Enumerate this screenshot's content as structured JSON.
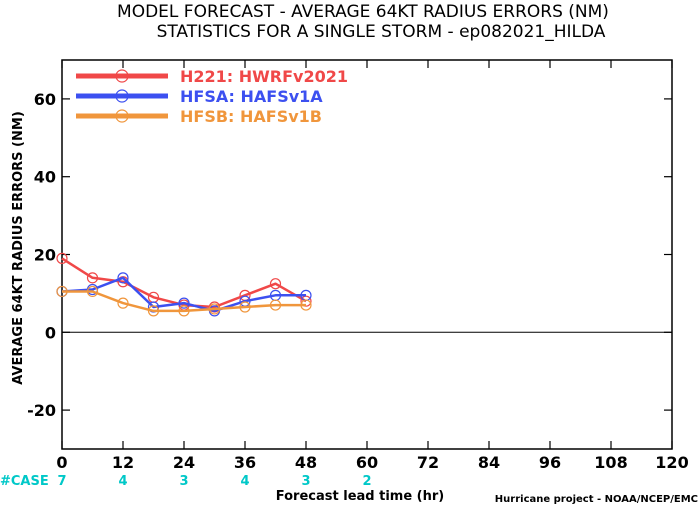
{
  "chart_data": {
    "type": "line",
    "title": "MODEL FORECAST - AVERAGE 64KT RADIUS ERRORS (NM)",
    "subtitle": "STATISTICS FOR A SINGLE STORM - ep082021_HILDA",
    "xlabel": "Forecast lead time (hr)",
    "ylabel": "AVERAGE 64KT RADIUS ERRORS (NM)",
    "xlim": [
      0,
      120
    ],
    "ylim": [
      -30,
      70
    ],
    "x_ticks": [
      0,
      12,
      24,
      36,
      48,
      60,
      72,
      84,
      96,
      108,
      120
    ],
    "y_ticks": [
      -20,
      0,
      20,
      40,
      60
    ],
    "zero_line": true,
    "legend_position": "top-left",
    "series": [
      {
        "name": "H221: HWRFv2021",
        "color": "#f04848",
        "x": [
          0,
          6,
          12,
          18,
          24,
          30,
          36,
          42,
          48
        ],
        "y": [
          19,
          14,
          13,
          9,
          7,
          6.5,
          9.5,
          12.5,
          8
        ]
      },
      {
        "name": "HFSA: HAFSv1A",
        "color": "#3c50f0",
        "x": [
          0,
          6,
          12,
          18,
          24,
          30,
          36,
          42,
          48
        ],
        "y": [
          10.5,
          11,
          14,
          6.5,
          7.5,
          5.5,
          8,
          9.5,
          9.5
        ]
      },
      {
        "name": "HFSB: HAFSv1B",
        "color": "#f0963c",
        "x": [
          0,
          6,
          12,
          18,
          24,
          30,
          36,
          42,
          48
        ],
        "y": [
          10.5,
          10.5,
          7.5,
          5.5,
          5.5,
          6,
          6.5,
          7,
          7
        ]
      }
    ],
    "case_counts": {
      "label": "#CASE",
      "color": "#00c8c8",
      "x": [
        0,
        12,
        24,
        36,
        48,
        60
      ],
      "values": [
        "7",
        "4",
        "3",
        "4",
        "3",
        "2"
      ]
    },
    "credit": "Hurricane project - NOAA/NCEP/EMC"
  }
}
